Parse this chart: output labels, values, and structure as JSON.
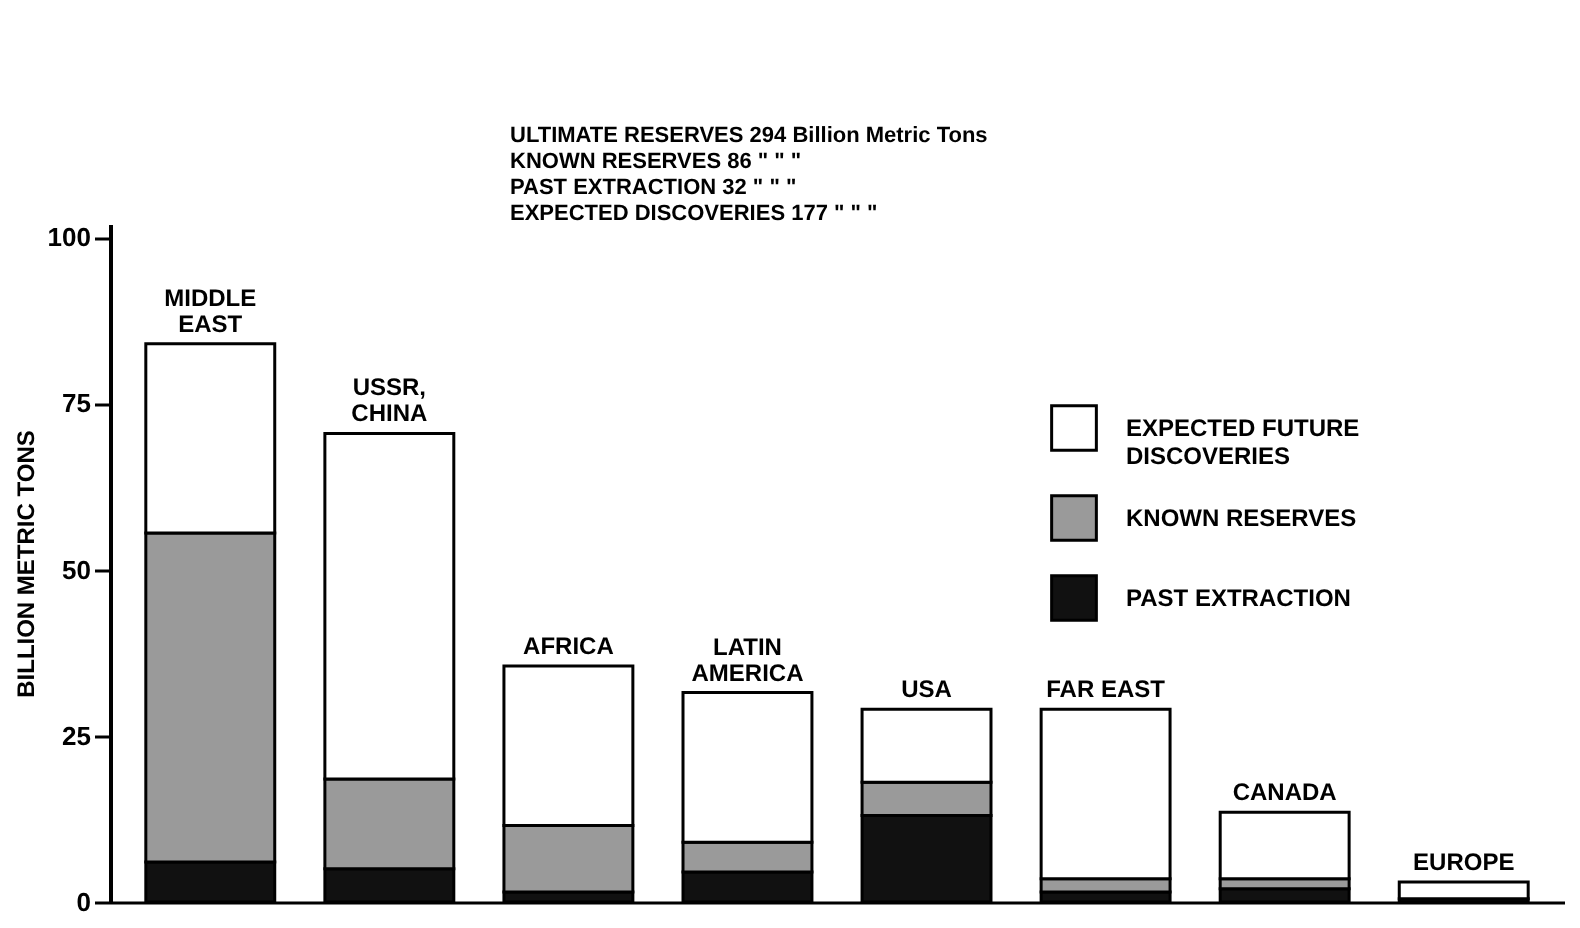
{
  "chart_data": {
    "type": "bar",
    "stacked": true,
    "ylabel": "BILLION METRIC TONS",
    "categories": [
      "MIDDLE\nEAST",
      "USSR,\nCHINA",
      "AFRICA",
      "LATIN\nAMERICA",
      "USA",
      "FAR EAST",
      "CANADA",
      "EUROPE"
    ],
    "series": [
      {
        "name": "PAST EXTRACTION",
        "color": "#111111",
        "values": [
          6,
          5,
          1.5,
          4.5,
          13,
          1.5,
          2,
          0.5
        ]
      },
      {
        "name": "KNOWN RESERVES",
        "color": "#9a9a9a",
        "values": [
          49.5,
          13.5,
          10,
          4.5,
          5,
          2,
          1.5,
          null
        ]
      },
      {
        "name": "EXPECTED FUTURE\nDISCOVERIES",
        "color": "#ffffff",
        "values": [
          28.5,
          52,
          24,
          22.5,
          11,
          25.5,
          10,
          2.5
        ]
      }
    ],
    "ylim": [
      0,
      102
    ],
    "yticks": [
      0,
      25,
      50,
      75,
      100
    ],
    "grid": false,
    "legend": "top right",
    "annotations": [
      "ULTIMATE RESERVES 294 Billion Metric Tons",
      "KNOWN RESERVES 86 \" \" \"",
      "PAST EXTRACTION 32 \" \" \"",
      "EXPECTED DISCOVERIES 177 \" \" \""
    ]
  }
}
